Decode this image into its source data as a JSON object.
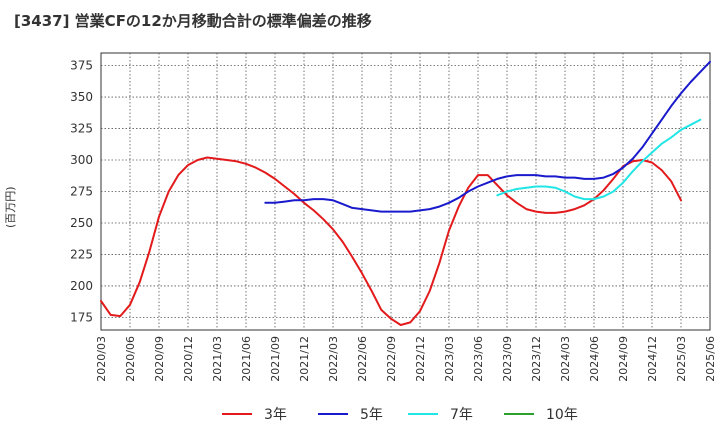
{
  "chart_data": {
    "type": "line",
    "title": "[3437]  営業CFの12か月移動合計の標準偏差の推移",
    "ylabel": "(百万円)",
    "xlabel": "",
    "ylim": [
      165,
      385
    ],
    "y_ticks": [
      175,
      200,
      225,
      250,
      275,
      300,
      325,
      350,
      375
    ],
    "x_ticks": [
      "2020/03",
      "2020/06",
      "2020/09",
      "2020/12",
      "2021/03",
      "2021/06",
      "2021/09",
      "2021/12",
      "2022/03",
      "2022/06",
      "2022/09",
      "2022/12",
      "2023/03",
      "2023/06",
      "2023/09",
      "2023/12",
      "2024/03",
      "2024/06",
      "2024/09",
      "2024/12",
      "2025/03",
      "2025/06"
    ],
    "grid": true,
    "legend_position": "bottom",
    "series": [
      {
        "name": "3年",
        "color": "#e31a1c",
        "start": "2020/03",
        "values": [
          188,
          177,
          176,
          185,
          203,
          227,
          255,
          275,
          288,
          296,
          300,
          302,
          301,
          300,
          299,
          297,
          294,
          290,
          285,
          279,
          273,
          266,
          260,
          253,
          245,
          235,
          223,
          210,
          196,
          181,
          174,
          169,
          171,
          180,
          196,
          218,
          244,
          263,
          278,
          288,
          288,
          280,
          272,
          266,
          261,
          259,
          258,
          258,
          259,
          261,
          264,
          269,
          276,
          285,
          295,
          299,
          300,
          298,
          292,
          283,
          268
        ]
      },
      {
        "name": "5年",
        "color": "#1a1acd",
        "start": "2021/08",
        "values": [
          266,
          266,
          267,
          268,
          268,
          269,
          269,
          268,
          265,
          262,
          261,
          260,
          259,
          259,
          259,
          259,
          260,
          261,
          263,
          266,
          270,
          275,
          279,
          282,
          285,
          287,
          288,
          288,
          288,
          287,
          287,
          286,
          286,
          285,
          285,
          286,
          289,
          294,
          301,
          310,
          321,
          332,
          343,
          353,
          362,
          370,
          378
        ]
      },
      {
        "name": "7年",
        "color": "#22e5e5",
        "start": "2023/08",
        "values": [
          272,
          275,
          277,
          278,
          279,
          279,
          278,
          275,
          271,
          269,
          269,
          271,
          275,
          282,
          291,
          299,
          306,
          313,
          318,
          324,
          328,
          332
        ]
      },
      {
        "name": "10年",
        "color": "#2ca02c",
        "start": "2025/03",
        "values": []
      }
    ]
  }
}
